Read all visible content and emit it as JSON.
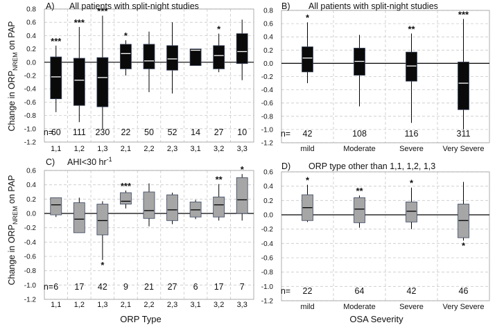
{
  "labels": {
    "y_axis_prefix": "Change in ORP",
    "y_axis_subscript": "NREM",
    "y_axis_suffix": " on PAP",
    "x_axis_left": "ORP Type",
    "x_axis_right": "OSA Severity",
    "n_prefix": "n="
  },
  "chart_data": [
    {
      "type": "box",
      "panel": "A)",
      "title": "All patients with split-night studies",
      "ylim": [
        -1.2,
        0.8
      ],
      "yticks": [
        -1.2,
        -1.0,
        -0.8,
        -0.6,
        -0.4,
        -0.2,
        0.0,
        0.2,
        0.4,
        0.6,
        0.8
      ],
      "categories": [
        "1,1",
        "1,2",
        "1,3",
        "2,1",
        "2,2",
        "2,3",
        "3,1",
        "3,2",
        "3,3"
      ],
      "n": [
        "60",
        "111",
        "230",
        "22",
        "50",
        "52",
        "14",
        "27",
        "10"
      ],
      "significance": [
        "***",
        "***",
        "***",
        "*",
        "",
        "",
        "",
        "*",
        ""
      ],
      "sig_position": [
        "top",
        "top",
        "top",
        "top",
        "",
        "",
        "",
        "top",
        ""
      ],
      "whisker_low": [
        -0.75,
        -0.9,
        -1.0,
        -0.2,
        -0.45,
        -0.47,
        -0.05,
        -0.15,
        -0.27
      ],
      "q1": [
        -0.55,
        -0.65,
        -0.67,
        -0.1,
        -0.1,
        -0.12,
        -0.05,
        -0.1,
        -0.02
      ],
      "median": [
        -0.22,
        -0.27,
        -0.23,
        0.13,
        0.02,
        0.05,
        0.18,
        0.1,
        0.16
      ],
      "q3": [
        0.08,
        0.06,
        0.07,
        0.27,
        0.27,
        0.25,
        0.2,
        0.25,
        0.43
      ],
      "whisker_high": [
        0.25,
        0.53,
        0.7,
        0.33,
        0.46,
        0.6,
        0.2,
        0.43,
        0.64
      ],
      "box_color": "#0a0a0a",
      "median_color": "#ffffff"
    },
    {
      "type": "box",
      "panel": "B)",
      "title": "All patients with split-night studies",
      "ylim": [
        -1.2,
        0.8
      ],
      "yticks": [
        -1.2,
        -1.0,
        -0.8,
        -0.6,
        -0.4,
        -0.2,
        0.0,
        0.2,
        0.4,
        0.6,
        0.8
      ],
      "categories": [
        "mild",
        "Moderate",
        "Severe",
        "Very Severe"
      ],
      "n": [
        "42",
        "108",
        "116",
        "311"
      ],
      "significance": [
        "*",
        "",
        "**",
        "***"
      ],
      "sig_position": [
        "top",
        "",
        "top",
        "top"
      ],
      "whisker_low": [
        -0.3,
        -0.65,
        -0.9,
        -1.0
      ],
      "q1": [
        -0.13,
        -0.18,
        -0.27,
        -0.7
      ],
      "median": [
        0.08,
        0.03,
        -0.04,
        -0.3
      ],
      "q3": [
        0.25,
        0.23,
        0.17,
        0.02
      ],
      "whisker_high": [
        0.62,
        0.43,
        0.45,
        0.67
      ],
      "box_color": "#0a0a0a",
      "median_color": "#ffffff"
    },
    {
      "type": "box",
      "panel": "C)",
      "title": "AHI<30 hr",
      "title_superscript": "-1",
      "ylim": [
        -1.2,
        0.6
      ],
      "yticks": [
        -1.2,
        -1.0,
        -0.8,
        -0.6,
        -0.4,
        -0.2,
        0.0,
        0.2,
        0.4,
        0.6
      ],
      "categories": [
        "1,1",
        "1,2",
        "1,3",
        "2,1",
        "2,2",
        "2,3",
        "3,1",
        "3,2",
        "3,3"
      ],
      "n": [
        "6",
        "17",
        "42",
        "9",
        "21",
        "27",
        "6",
        "17",
        "7"
      ],
      "significance": [
        "",
        "",
        "*",
        "***",
        "",
        "",
        "",
        "**",
        "*"
      ],
      "sig_position": [
        "",
        "",
        "bottom",
        "top",
        "",
        "",
        "",
        "top",
        "top"
      ],
      "whisker_low": [
        -0.05,
        -0.27,
        -0.65,
        0.07,
        -0.18,
        -0.15,
        -0.08,
        -0.1,
        -0.1
      ],
      "q1": [
        -0.02,
        -0.27,
        -0.3,
        0.13,
        -0.07,
        -0.1,
        -0.05,
        -0.05,
        0.0
      ],
      "median": [
        0.12,
        -0.08,
        -0.1,
        0.17,
        0.04,
        0.05,
        0.05,
        0.12,
        0.19
      ],
      "q3": [
        0.22,
        0.15,
        0.13,
        0.29,
        0.3,
        0.26,
        0.16,
        0.23,
        0.5
      ],
      "whisker_high": [
        0.22,
        0.22,
        0.17,
        0.32,
        0.42,
        0.29,
        0.19,
        0.41,
        0.55
      ],
      "box_color": "#a6a6a6",
      "median_color": "#000000"
    },
    {
      "type": "box",
      "panel": "D)",
      "title": "ORP type other than 1,1, 1,2, 1,3",
      "ylim": [
        -1.2,
        0.6
      ],
      "yticks": [
        -1.2,
        -1.0,
        -0.8,
        -0.6,
        -0.4,
        -0.2,
        0.0,
        0.2,
        0.4,
        0.6
      ],
      "categories": [
        "mild",
        "Moderate",
        "Severe",
        "Very Severe"
      ],
      "n": [
        "22",
        "64",
        "42",
        "46"
      ],
      "significance": [
        "*",
        "**",
        "*",
        "*"
      ],
      "sig_position": [
        "top",
        "top",
        "top",
        "bottom"
      ],
      "whisker_low": [
        -0.1,
        -0.18,
        -0.2,
        -0.36
      ],
      "q1": [
        -0.08,
        -0.11,
        -0.1,
        -0.32
      ],
      "median": [
        0.1,
        0.08,
        0.05,
        -0.08
      ],
      "q3": [
        0.28,
        0.24,
        0.18,
        0.15
      ],
      "whisker_high": [
        0.42,
        0.27,
        0.38,
        0.46
      ],
      "box_color": "#a6a6a6",
      "median_color": "#000000"
    }
  ]
}
